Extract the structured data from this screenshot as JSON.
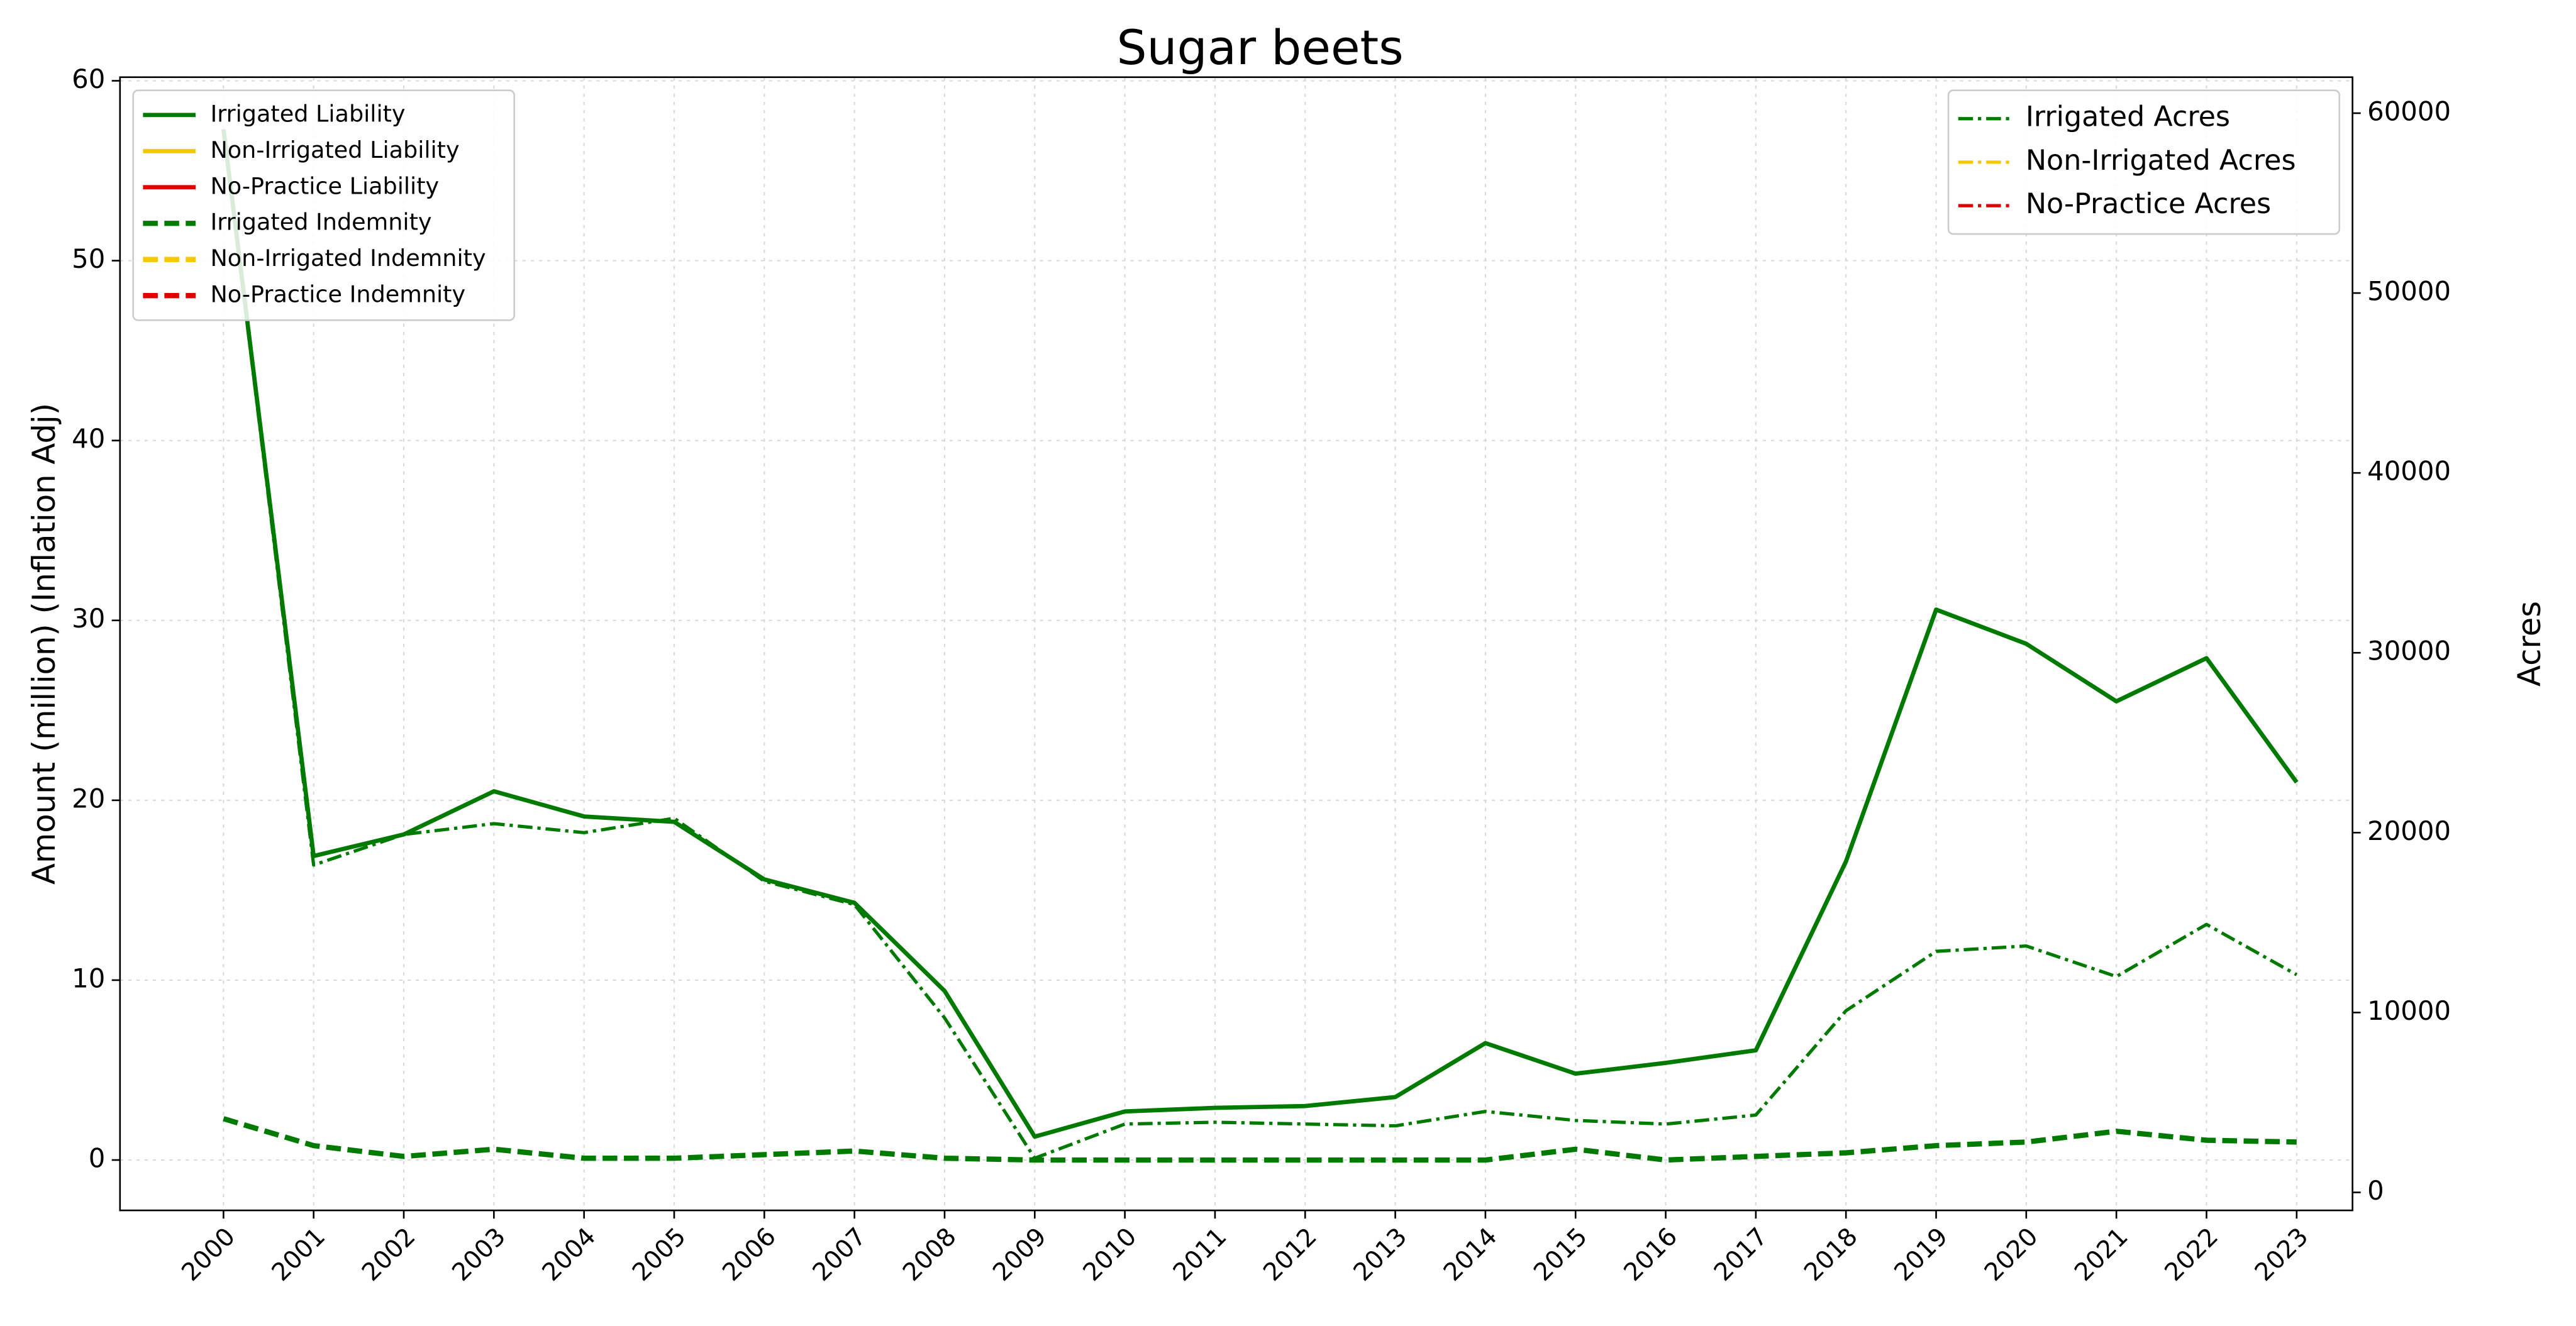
{
  "chart_data": {
    "type": "line",
    "title": "Sugar beets",
    "y_label": "Amount (million) (Inflation Adj)",
    "y2_label": "Acres",
    "categories": [
      "2000",
      "2001",
      "2002",
      "2003",
      "2004",
      "2005",
      "2006",
      "2007",
      "2008",
      "2009",
      "2010",
      "2011",
      "2012",
      "2013",
      "2014",
      "2015",
      "2016",
      "2017",
      "2018",
      "2019",
      "2020",
      "2021",
      "2022",
      "2023"
    ],
    "ylim": [
      -2.8,
      60.2
    ],
    "yticks": [
      0,
      10,
      20,
      30,
      40,
      50,
      60
    ],
    "y2lim": [
      -1000,
      62000
    ],
    "y2ticks": [
      0,
      10000,
      20000,
      30000,
      40000,
      50000,
      60000
    ],
    "grid": true,
    "legend": "upper left",
    "legend2": "upper right",
    "series": [
      {
        "name": "Irrigated Liability",
        "color": "#007a00",
        "dash": "solid",
        "values": [
          57.3,
          16.9,
          18.1,
          20.5,
          19.1,
          18.8,
          15.6,
          14.3,
          9.4,
          1.3,
          2.7,
          2.9,
          3.0,
          3.5,
          6.5,
          4.8,
          5.4,
          6.1,
          16.6,
          30.6,
          28.7,
          25.5,
          27.9,
          21.0
        ]
      },
      {
        "name": "Non-Irrigated Liability",
        "color": "#f5c800",
        "dash": "solid",
        "values": [
          null,
          null,
          null,
          null,
          null,
          null,
          null,
          null,
          null,
          null,
          null,
          null,
          null,
          null,
          null,
          null,
          null,
          null,
          null,
          null,
          null,
          null,
          null,
          null
        ]
      },
      {
        "name": "No-Practice Liability",
        "color": "#e00000",
        "dash": "solid",
        "values": [
          null,
          null,
          null,
          null,
          null,
          null,
          null,
          null,
          null,
          null,
          null,
          null,
          null,
          null,
          null,
          null,
          null,
          null,
          null,
          null,
          null,
          null,
          null,
          null
        ]
      },
      {
        "name": "Irrigated Indemnity",
        "color": "#007a00",
        "dash": "dashed",
        "values": [
          2.3,
          0.8,
          0.2,
          0.6,
          0.1,
          0.1,
          0.3,
          0.5,
          0.1,
          0,
          0,
          0,
          0,
          0,
          0,
          0.6,
          0,
          0.2,
          0.4,
          0.8,
          1.0,
          1.6,
          1.1,
          1.0
        ]
      },
      {
        "name": "Non-Irrigated Indemnity",
        "color": "#f5c800",
        "dash": "dashed",
        "values": [
          null,
          null,
          null,
          null,
          null,
          null,
          null,
          null,
          null,
          null,
          null,
          null,
          null,
          null,
          null,
          null,
          null,
          null,
          null,
          null,
          null,
          null,
          null,
          null
        ]
      },
      {
        "name": "No-Practice Indemnity",
        "color": "#e00000",
        "dash": "dashed",
        "values": [
          null,
          null,
          null,
          null,
          null,
          null,
          null,
          null,
          null,
          null,
          null,
          null,
          null,
          null,
          null,
          null,
          null,
          null,
          null,
          null,
          null,
          null,
          null,
          null
        ]
      },
      {
        "name": "Irrigated Acres",
        "color": "#007a00",
        "dash": "dashdot",
        "axis": "y2",
        "values": [
          59000,
          18200,
          19900,
          20500,
          20000,
          20800,
          17300,
          16000,
          9700,
          1900,
          3800,
          3900,
          3800,
          3700,
          4500,
          4000,
          3800,
          4300,
          10100,
          13400,
          13700,
          12000,
          14900,
          12100
        ]
      },
      {
        "name": "Non-Irrigated Acres",
        "color": "#f5c800",
        "dash": "dashdot",
        "axis": "y2",
        "values": [
          null,
          null,
          null,
          null,
          null,
          null,
          null,
          null,
          null,
          null,
          null,
          null,
          null,
          null,
          null,
          null,
          null,
          null,
          null,
          null,
          null,
          null,
          null,
          null
        ]
      },
      {
        "name": "No-Practice Acres",
        "color": "#e00000",
        "dash": "dashdot",
        "axis": "y2",
        "values": [
          null,
          null,
          null,
          null,
          null,
          null,
          null,
          null,
          null,
          null,
          null,
          null,
          null,
          null,
          null,
          null,
          null,
          null,
          null,
          null,
          null,
          null,
          null,
          null
        ]
      }
    ]
  }
}
